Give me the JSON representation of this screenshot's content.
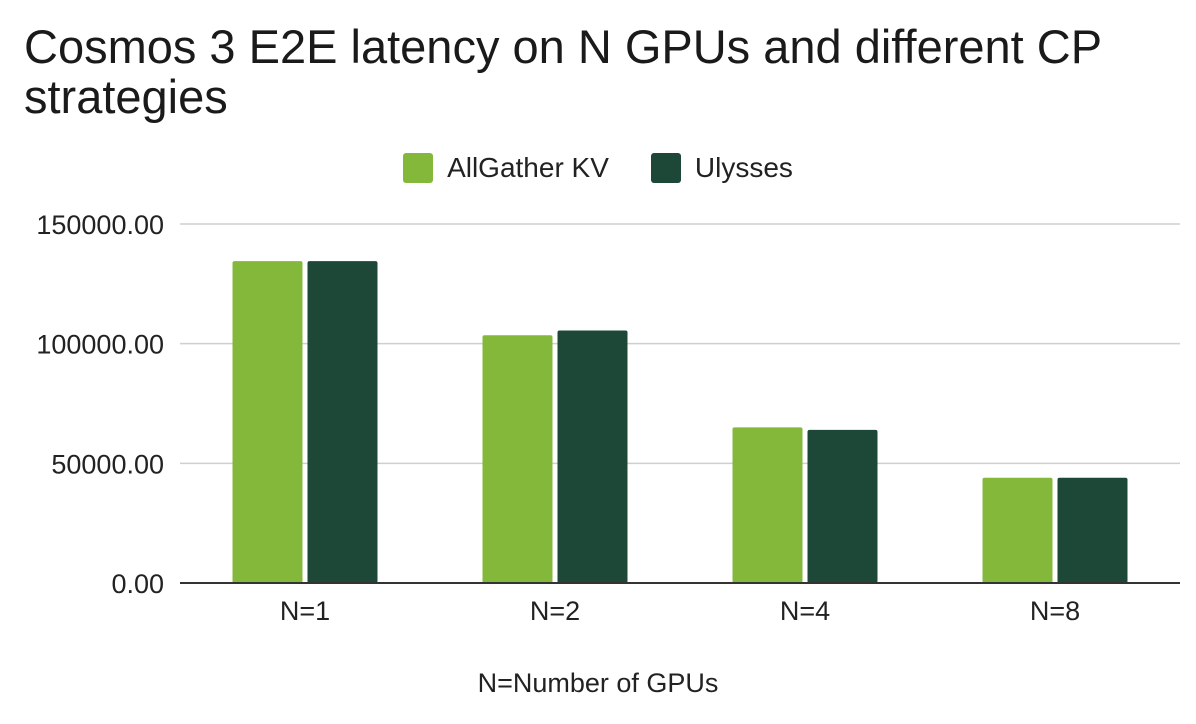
{
  "chart_data": {
    "type": "bar",
    "title": "Cosmos 3 E2E latency on N GPUs and different CP strategies",
    "xlabel": "N=Number of GPUs",
    "ylabel": "",
    "categories": [
      "N=1",
      "N=2",
      "N=4",
      "N=8"
    ],
    "series": [
      {
        "name": "AllGather KV",
        "color": "#84b83b",
        "values": [
          134500,
          103500,
          65000,
          44000
        ]
      },
      {
        "name": "Ulysses",
        "color": "#1d4736",
        "values": [
          134500,
          105500,
          64000,
          44000
        ]
      }
    ],
    "ylim": [
      0,
      150000
    ],
    "yticks": [
      "0.00",
      "50000.00",
      "100000.00",
      "150000.00"
    ],
    "ytick_values": [
      0,
      50000,
      100000,
      150000
    ],
    "grid": true,
    "legend_position": "top-center"
  }
}
